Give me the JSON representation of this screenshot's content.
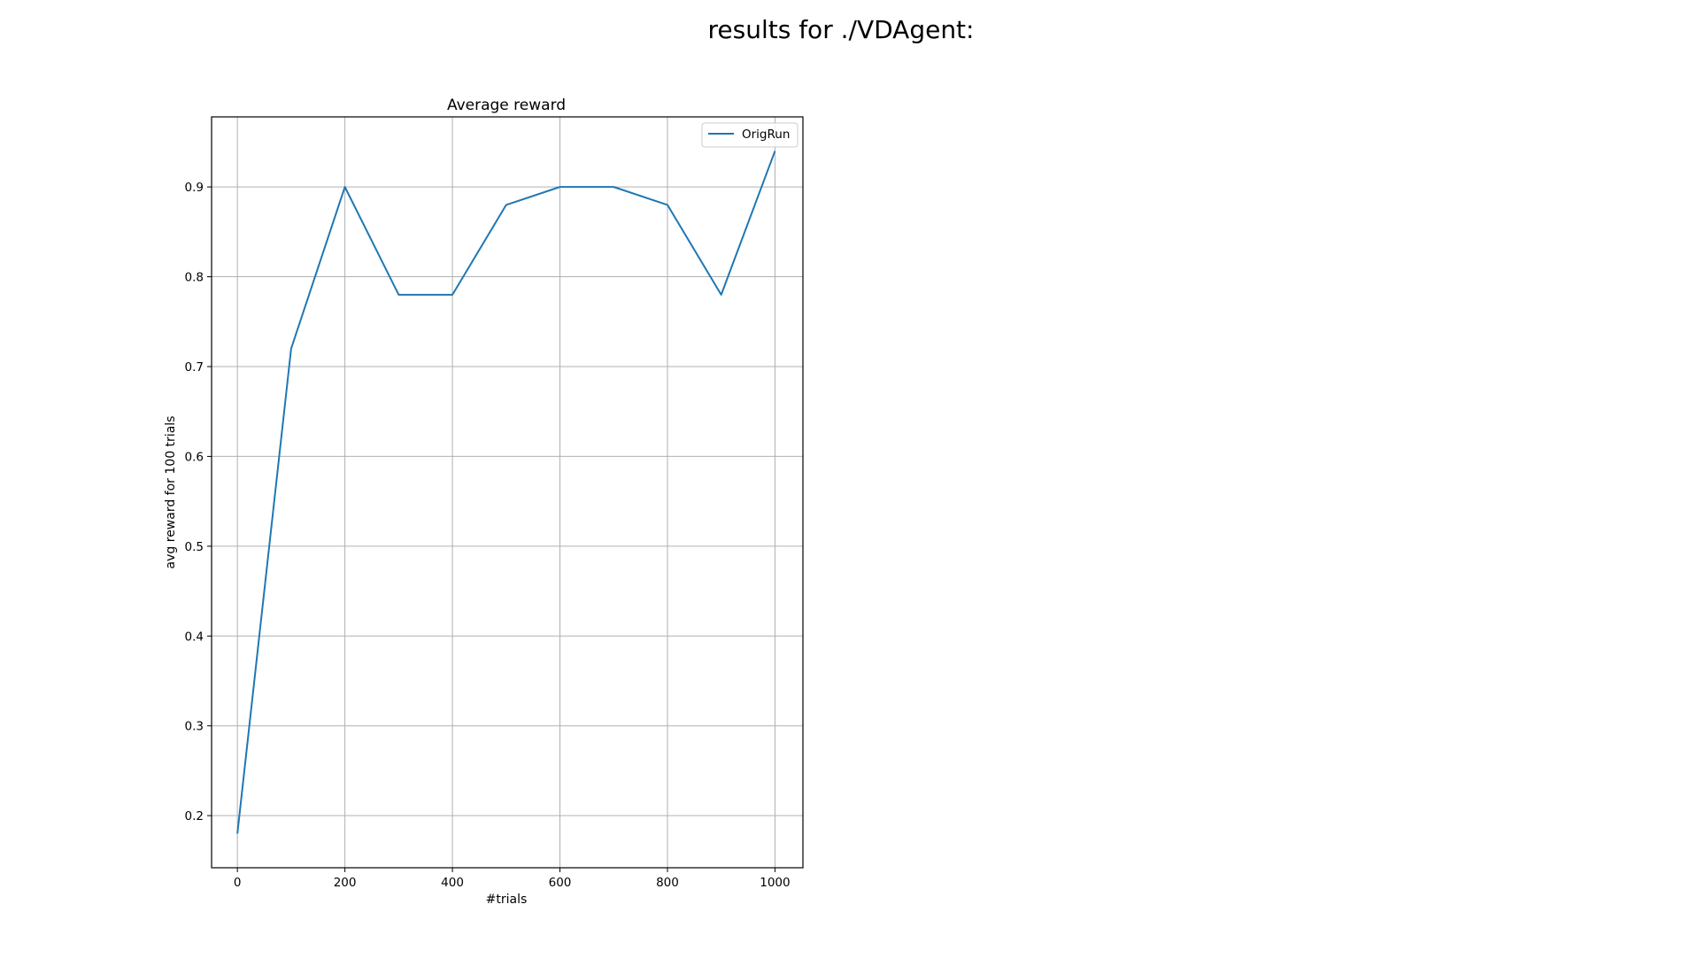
{
  "figure": {
    "suptitle": "results for ./VDAgent:"
  },
  "chart_data": {
    "type": "line",
    "title": "Average reward",
    "xlabel": "#trials",
    "ylabel": "avg reward for 100 trials",
    "xlim": [
      -48,
      1052
    ],
    "ylim": [
      0.142,
      0.978
    ],
    "xticks": [
      0,
      200,
      400,
      600,
      800,
      1000
    ],
    "xtick_labels": [
      "0",
      "200",
      "400",
      "600",
      "800",
      "1000"
    ],
    "yticks": [
      0.2,
      0.3,
      0.4,
      0.5,
      0.6,
      0.7,
      0.8,
      0.9
    ],
    "ytick_labels": [
      "0.2",
      "0.3",
      "0.4",
      "0.5",
      "0.6",
      "0.7",
      "0.8",
      "0.9"
    ],
    "grid": true,
    "legend_position": "top-right",
    "series": [
      {
        "name": "OrigRun",
        "color": "#1f77b4",
        "x": [
          0,
          100,
          200,
          300,
          400,
          500,
          600,
          700,
          800,
          900,
          1000
        ],
        "values": [
          0.18,
          0.72,
          0.9,
          0.78,
          0.78,
          0.88,
          0.9,
          0.9,
          0.88,
          0.78,
          0.94
        ]
      }
    ]
  }
}
